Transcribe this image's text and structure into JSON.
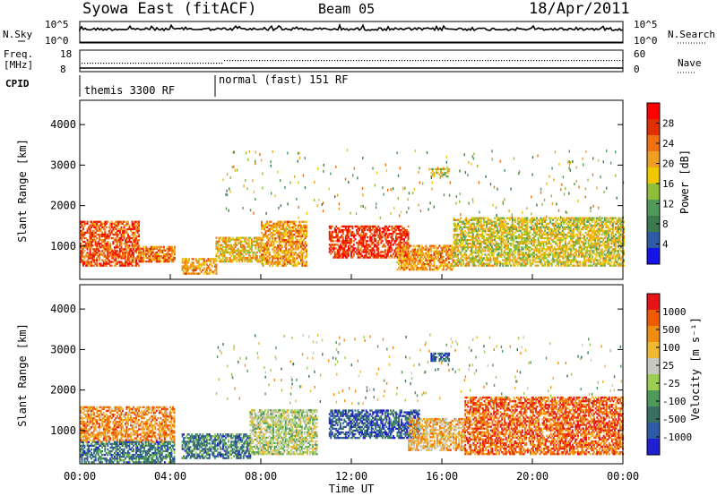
{
  "header": {
    "station": "Syowa East (fitACF)",
    "beam": "Beam 05",
    "date": "18/Apr/2011"
  },
  "top_panels": {
    "nsky_label": "N.Sky",
    "nsky_ticks": [
      "10^5",
      "10^0"
    ],
    "nsearch_label": "N.Search",
    "nsearch_ticks": [
      "10^5",
      "10^0"
    ],
    "freq_label": "Freq.",
    "freq_unit": "[MHz]",
    "freq_ticks": [
      "18",
      "8"
    ],
    "nave_label": "Nave",
    "nave_ticks": [
      "60",
      "0"
    ],
    "cpid_label": "CPID",
    "cpid_segments": [
      {
        "label": "themis 3300 RF",
        "start_h": 0,
        "end_h": 6
      },
      {
        "label": "normal (fast) 151 RF",
        "start_h": 6,
        "end_h": 24
      }
    ]
  },
  "power_panel": {
    "ylabel": "Slant Range [km]",
    "yticks": [
      "1000",
      "2000",
      "3000",
      "4000"
    ],
    "colorbar_label": "Power [dB]",
    "colorbar_ticks": [
      "4",
      "8",
      "12",
      "16",
      "20",
      "24",
      "28"
    ],
    "colors": [
      "#1414e6",
      "#2f5aa8",
      "#3c7a4e",
      "#4f9a5a",
      "#8fbf3a",
      "#f0c800",
      "#f0a020",
      "#f07010",
      "#e03000",
      "#ff0000"
    ]
  },
  "velocity_panel": {
    "ylabel": "Slant Range [km]",
    "yticks": [
      "1000",
      "2000",
      "3000",
      "4000"
    ],
    "colorbar_label": "Velocity [m s⁻¹]",
    "colorbar_ticks": [
      "1000",
      "500",
      "100",
      "25",
      "-25",
      "-100",
      "-500",
      "-1000"
    ],
    "colors": [
      "#2020d0",
      "#2f5aa8",
      "#3a7060",
      "#4f9a5a",
      "#9acd50",
      "#c8c8c0",
      "#f0b830",
      "#f08c10",
      "#f05a00",
      "#e61414"
    ]
  },
  "time_axis": {
    "ticks": [
      "00:00",
      "04:00",
      "08:00",
      "12:00",
      "16:00",
      "20:00",
      "00:00"
    ],
    "label": "Time UT"
  },
  "chart_data": [
    {
      "type": "heatmap",
      "title": "Power",
      "xlabel": "Time UT",
      "ylabel": "Slant Range [km]",
      "xlim": [
        0,
        24
      ],
      "ylim": [
        180,
        4600
      ],
      "colorbar_label": "Power [dB]",
      "clim": [
        0,
        30
      ],
      "regions": [
        {
          "t": [
            0.0,
            2.6
          ],
          "r": [
            500,
            1600
          ],
          "power_db": 24
        },
        {
          "t": [
            2.6,
            4.2
          ],
          "r": [
            600,
            1000
          ],
          "power_db": 22
        },
        {
          "t": [
            4.5,
            6.0
          ],
          "r": [
            300,
            700
          ],
          "power_db": 20
        },
        {
          "t": [
            6.0,
            8.0
          ],
          "r": [
            600,
            1200
          ],
          "power_db": 18
        },
        {
          "t": [
            8.0,
            10.0
          ],
          "r": [
            500,
            1600
          ],
          "power_db": 20
        },
        {
          "t": [
            11.0,
            14.5
          ],
          "r": [
            700,
            1500
          ],
          "power_db": 26
        },
        {
          "t": [
            14.0,
            16.5
          ],
          "r": [
            400,
            1000
          ],
          "power_db": 20
        },
        {
          "t": [
            16.5,
            24.0
          ],
          "r": [
            500,
            1700
          ],
          "power_db": 16
        },
        {
          "t": [
            15.5,
            16.3
          ],
          "r": [
            2700,
            2900
          ],
          "power_db": 16
        }
      ]
    },
    {
      "type": "heatmap",
      "title": "Velocity",
      "xlabel": "Time UT",
      "ylabel": "Slant Range [km]",
      "xlim": [
        0,
        24
      ],
      "ylim": [
        180,
        4600
      ],
      "colorbar_label": "Velocity [m s⁻¹]",
      "clim": [
        -1000,
        1000
      ],
      "regions": [
        {
          "t": [
            0.0,
            4.2
          ],
          "r": [
            700,
            1600
          ],
          "velocity": 150
        },
        {
          "t": [
            0.0,
            4.2
          ],
          "r": [
            200,
            700
          ],
          "velocity": -150
        },
        {
          "t": [
            4.5,
            7.5
          ],
          "r": [
            300,
            900
          ],
          "velocity": -150
        },
        {
          "t": [
            7.5,
            10.5
          ],
          "r": [
            400,
            1500
          ],
          "velocity": 0
        },
        {
          "t": [
            11.0,
            15.0
          ],
          "r": [
            800,
            1500
          ],
          "velocity": -200
        },
        {
          "t": [
            14.5,
            17.0
          ],
          "r": [
            500,
            1300
          ],
          "velocity": 100
        },
        {
          "t": [
            17.0,
            24.0
          ],
          "r": [
            400,
            1800
          ],
          "velocity": 200
        },
        {
          "t": [
            15.5,
            16.3
          ],
          "r": [
            2700,
            2900
          ],
          "velocity": -200
        }
      ]
    }
  ]
}
